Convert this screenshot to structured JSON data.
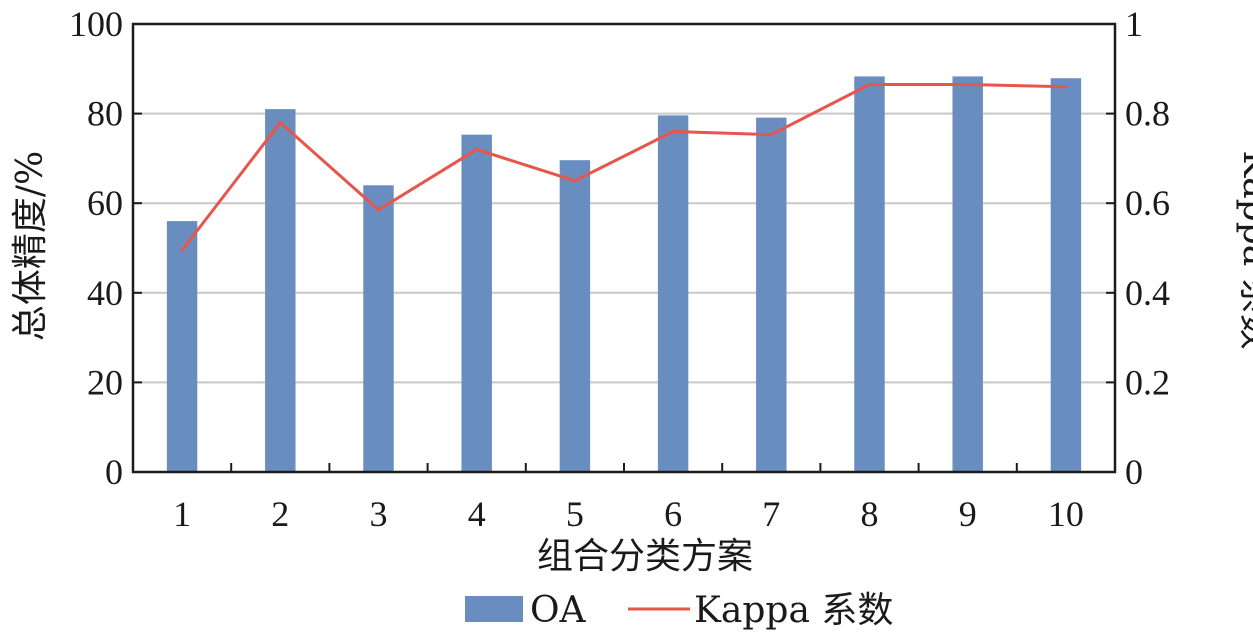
{
  "chart_data": {
    "type": "bar",
    "categories": [
      "1",
      "2",
      "3",
      "4",
      "5",
      "6",
      "7",
      "8",
      "9",
      "10"
    ],
    "series": [
      {
        "name": "OA",
        "type": "bar",
        "axis": "left",
        "color": "#6a8dbf",
        "values": [
          56,
          81,
          64,
          75.3,
          69.6,
          79.6,
          79.1,
          88.3,
          88.3,
          87.9
        ]
      },
      {
        "name": "Kappa 系数",
        "type": "line",
        "axis": "right",
        "color": "#e8554a",
        "values": [
          0.495,
          0.78,
          0.585,
          0.72,
          0.65,
          0.76,
          0.753,
          0.865,
          0.865,
          0.86
        ]
      }
    ],
    "xlabel": "组合分类方案",
    "ylabel": "总体精度/%",
    "y2label": "Kappa 系数",
    "ylim": [
      0,
      100
    ],
    "y2lim": [
      0,
      1
    ],
    "yticks": [
      "0",
      "20",
      "40",
      "60",
      "80",
      "100"
    ],
    "y2ticks": [
      "0",
      "0.2",
      "0.4",
      "0.6",
      "0.8",
      "1"
    ],
    "grid": true,
    "legend": "bottom"
  }
}
